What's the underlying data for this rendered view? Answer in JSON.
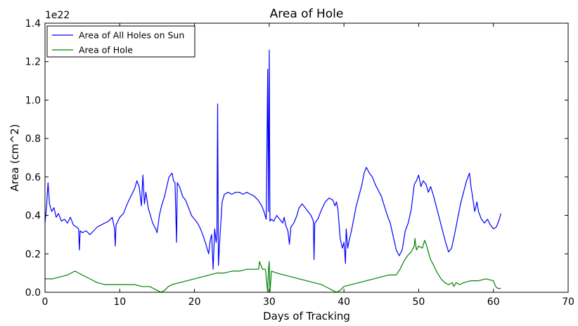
{
  "chart_data": {
    "type": "line",
    "title": "Area of Hole",
    "xlabel": "Days of Tracking",
    "ylabel": "Area (cm^2)",
    "y_offset_label": "1e22",
    "xlim": [
      0,
      70
    ],
    "ylim": [
      0,
      1.4
    ],
    "x_ticks": [
      "0",
      "10",
      "20",
      "30",
      "40",
      "50",
      "60",
      "70"
    ],
    "y_ticks": [
      "0.0",
      "0.2",
      "0.4",
      "0.6",
      "0.8",
      "1.0",
      "1.2",
      "1.4"
    ],
    "grid": false,
    "legend_position": "top-left",
    "series": [
      {
        "name": "Area of All Holes on Sun",
        "color": "#0000ff",
        "points": [
          [
            0,
            0.36
          ],
          [
            0.2,
            0.44
          ],
          [
            0.4,
            0.57
          ],
          [
            0.6,
            0.46
          ],
          [
            0.9,
            0.42
          ],
          [
            1.2,
            0.44
          ],
          [
            1.5,
            0.39
          ],
          [
            1.8,
            0.41
          ],
          [
            2.2,
            0.37
          ],
          [
            2.6,
            0.38
          ],
          [
            3.0,
            0.36
          ],
          [
            3.4,
            0.39
          ],
          [
            3.8,
            0.35
          ],
          [
            4.2,
            0.34
          ],
          [
            4.5,
            0.33
          ],
          [
            4.6,
            0.22
          ],
          [
            4.7,
            0.32
          ],
          [
            5.0,
            0.31
          ],
          [
            5.5,
            0.32
          ],
          [
            6.0,
            0.3
          ],
          [
            6.5,
            0.32
          ],
          [
            7.0,
            0.34
          ],
          [
            7.5,
            0.35
          ],
          [
            8.0,
            0.36
          ],
          [
            8.5,
            0.37
          ],
          [
            9.0,
            0.39
          ],
          [
            9.3,
            0.33
          ],
          [
            9.4,
            0.24
          ],
          [
            9.5,
            0.35
          ],
          [
            10.0,
            0.39
          ],
          [
            10.5,
            0.41
          ],
          [
            11.0,
            0.46
          ],
          [
            11.5,
            0.5
          ],
          [
            12.0,
            0.54
          ],
          [
            12.3,
            0.58
          ],
          [
            12.6,
            0.55
          ],
          [
            12.9,
            0.45
          ],
          [
            13.1,
            0.61
          ],
          [
            13.3,
            0.46
          ],
          [
            13.5,
            0.52
          ],
          [
            13.8,
            0.44
          ],
          [
            14.1,
            0.4
          ],
          [
            14.4,
            0.36
          ],
          [
            14.8,
            0.33
          ],
          [
            15.0,
            0.31
          ],
          [
            15.3,
            0.4
          ],
          [
            15.6,
            0.45
          ],
          [
            16.0,
            0.5
          ],
          [
            16.3,
            0.55
          ],
          [
            16.6,
            0.6
          ],
          [
            17.0,
            0.62
          ],
          [
            17.2,
            0.58
          ],
          [
            17.4,
            0.57
          ],
          [
            17.6,
            0.26
          ],
          [
            17.7,
            0.57
          ],
          [
            18.0,
            0.55
          ],
          [
            18.4,
            0.5
          ],
          [
            18.8,
            0.48
          ],
          [
            19.2,
            0.44
          ],
          [
            19.6,
            0.4
          ],
          [
            20.0,
            0.38
          ],
          [
            20.4,
            0.36
          ],
          [
            20.8,
            0.33
          ],
          [
            21.2,
            0.29
          ],
          [
            21.6,
            0.24
          ],
          [
            21.9,
            0.2
          ],
          [
            22.1,
            0.27
          ],
          [
            22.3,
            0.3
          ],
          [
            22.5,
            0.12
          ],
          [
            22.7,
            0.33
          ],
          [
            22.9,
            0.26
          ],
          [
            23.0,
            0.3
          ],
          [
            23.1,
            0.98
          ],
          [
            23.2,
            0.14
          ],
          [
            23.4,
            0.28
          ],
          [
            23.7,
            0.47
          ],
          [
            24.0,
            0.51
          ],
          [
            24.5,
            0.52
          ],
          [
            25.0,
            0.51
          ],
          [
            25.5,
            0.52
          ],
          [
            26.0,
            0.52
          ],
          [
            26.5,
            0.51
          ],
          [
            27.0,
            0.52
          ],
          [
            27.5,
            0.51
          ],
          [
            28.0,
            0.5
          ],
          [
            28.5,
            0.48
          ],
          [
            29.0,
            0.45
          ],
          [
            29.3,
            0.42
          ],
          [
            29.6,
            0.38
          ],
          [
            29.8,
            1.16
          ],
          [
            29.9,
            0.42
          ],
          [
            30.0,
            1.26
          ],
          [
            30.1,
            0.37
          ],
          [
            30.3,
            0.38
          ],
          [
            30.6,
            0.37
          ],
          [
            31.0,
            0.4
          ],
          [
            31.4,
            0.38
          ],
          [
            31.8,
            0.36
          ],
          [
            32.0,
            0.39
          ],
          [
            32.2,
            0.35
          ],
          [
            32.5,
            0.32
          ],
          [
            32.7,
            0.25
          ],
          [
            32.9,
            0.34
          ],
          [
            33.3,
            0.36
          ],
          [
            33.7,
            0.4
          ],
          [
            34.0,
            0.44
          ],
          [
            34.4,
            0.46
          ],
          [
            34.8,
            0.44
          ],
          [
            35.2,
            0.42
          ],
          [
            35.6,
            0.4
          ],
          [
            35.9,
            0.37
          ],
          [
            36.0,
            0.17
          ],
          [
            36.1,
            0.36
          ],
          [
            36.5,
            0.38
          ],
          [
            37.0,
            0.43
          ],
          [
            37.5,
            0.47
          ],
          [
            38.0,
            0.49
          ],
          [
            38.5,
            0.48
          ],
          [
            38.8,
            0.45
          ],
          [
            39.0,
            0.47
          ],
          [
            39.2,
            0.43
          ],
          [
            39.5,
            0.28
          ],
          [
            39.8,
            0.23
          ],
          [
            40.0,
            0.26
          ],
          [
            40.1,
            0.21
          ],
          [
            40.2,
            0.15
          ],
          [
            40.3,
            0.33
          ],
          [
            40.5,
            0.23
          ],
          [
            40.7,
            0.27
          ],
          [
            41.0,
            0.32
          ],
          [
            41.3,
            0.38
          ],
          [
            41.6,
            0.44
          ],
          [
            42.0,
            0.5
          ],
          [
            42.4,
            0.56
          ],
          [
            42.7,
            0.62
          ],
          [
            43.0,
            0.65
          ],
          [
            43.4,
            0.62
          ],
          [
            43.8,
            0.6
          ],
          [
            44.2,
            0.56
          ],
          [
            44.6,
            0.53
          ],
          [
            45.0,
            0.5
          ],
          [
            45.4,
            0.45
          ],
          [
            45.8,
            0.4
          ],
          [
            46.2,
            0.36
          ],
          [
            46.6,
            0.29
          ],
          [
            47.0,
            0.22
          ],
          [
            47.4,
            0.19
          ],
          [
            47.8,
            0.22
          ],
          [
            48.2,
            0.32
          ],
          [
            48.6,
            0.36
          ],
          [
            49.0,
            0.43
          ],
          [
            49.4,
            0.56
          ],
          [
            49.7,
            0.58
          ],
          [
            50.0,
            0.61
          ],
          [
            50.3,
            0.55
          ],
          [
            50.6,
            0.58
          ],
          [
            51.0,
            0.56
          ],
          [
            51.3,
            0.52
          ],
          [
            51.6,
            0.55
          ],
          [
            52.0,
            0.5
          ],
          [
            52.4,
            0.44
          ],
          [
            52.8,
            0.38
          ],
          [
            53.2,
            0.32
          ],
          [
            53.6,
            0.26
          ],
          [
            54.0,
            0.21
          ],
          [
            54.4,
            0.23
          ],
          [
            54.8,
            0.3
          ],
          [
            55.2,
            0.38
          ],
          [
            55.6,
            0.46
          ],
          [
            56.0,
            0.52
          ],
          [
            56.4,
            0.58
          ],
          [
            56.8,
            0.62
          ],
          [
            57.0,
            0.55
          ],
          [
            57.2,
            0.5
          ],
          [
            57.5,
            0.42
          ],
          [
            57.8,
            0.47
          ],
          [
            58.0,
            0.42
          ],
          [
            58.4,
            0.38
          ],
          [
            58.8,
            0.36
          ],
          [
            59.2,
            0.38
          ],
          [
            59.6,
            0.35
          ],
          [
            60.0,
            0.33
          ],
          [
            60.4,
            0.34
          ],
          [
            60.8,
            0.38
          ],
          [
            61.0,
            0.41
          ]
        ]
      },
      {
        "name": "Area of Hole",
        "color": "#008000",
        "points": [
          [
            0,
            0.07
          ],
          [
            1.0,
            0.07
          ],
          [
            2.0,
            0.08
          ],
          [
            3.0,
            0.09
          ],
          [
            3.5,
            0.1
          ],
          [
            4.0,
            0.11
          ],
          [
            4.5,
            0.1
          ],
          [
            5.0,
            0.09
          ],
          [
            5.5,
            0.08
          ],
          [
            6.0,
            0.07
          ],
          [
            7.0,
            0.05
          ],
          [
            8.0,
            0.04
          ],
          [
            9.0,
            0.04
          ],
          [
            10.0,
            0.04
          ],
          [
            11.0,
            0.04
          ],
          [
            12.0,
            0.04
          ],
          [
            13.0,
            0.03
          ],
          [
            14.0,
            0.03
          ],
          [
            14.5,
            0.02
          ],
          [
            15.0,
            0.01
          ],
          [
            15.5,
            0.0
          ],
          [
            16.0,
            0.01
          ],
          [
            16.5,
            0.03
          ],
          [
            17.0,
            0.04
          ],
          [
            18.0,
            0.05
          ],
          [
            19.0,
            0.06
          ],
          [
            20.0,
            0.07
          ],
          [
            21.0,
            0.08
          ],
          [
            22.0,
            0.09
          ],
          [
            23.0,
            0.1
          ],
          [
            24.0,
            0.1
          ],
          [
            25.0,
            0.11
          ],
          [
            26.0,
            0.11
          ],
          [
            27.0,
            0.12
          ],
          [
            28.0,
            0.12
          ],
          [
            28.6,
            0.12
          ],
          [
            28.7,
            0.16
          ],
          [
            28.9,
            0.14
          ],
          [
            29.1,
            0.12
          ],
          [
            29.5,
            0.12
          ],
          [
            29.8,
            0.0
          ],
          [
            29.9,
            0.12
          ],
          [
            30.0,
            0.16
          ],
          [
            30.1,
            0.0
          ],
          [
            30.3,
            0.11
          ],
          [
            31.0,
            0.1
          ],
          [
            32.0,
            0.09
          ],
          [
            33.0,
            0.08
          ],
          [
            34.0,
            0.07
          ],
          [
            35.0,
            0.06
          ],
          [
            36.0,
            0.05
          ],
          [
            37.0,
            0.04
          ],
          [
            38.0,
            0.02
          ],
          [
            38.5,
            0.01
          ],
          [
            39.0,
            0.0
          ],
          [
            39.5,
            0.01
          ],
          [
            40.0,
            0.03
          ],
          [
            41.0,
            0.04
          ],
          [
            42.0,
            0.05
          ],
          [
            43.0,
            0.06
          ],
          [
            44.0,
            0.07
          ],
          [
            45.0,
            0.08
          ],
          [
            46.0,
            0.09
          ],
          [
            47.0,
            0.09
          ],
          [
            47.5,
            0.12
          ],
          [
            48.0,
            0.16
          ],
          [
            48.5,
            0.19
          ],
          [
            49.0,
            0.21
          ],
          [
            49.4,
            0.24
          ],
          [
            49.5,
            0.28
          ],
          [
            49.7,
            0.22
          ],
          [
            50.0,
            0.24
          ],
          [
            50.5,
            0.23
          ],
          [
            50.8,
            0.27
          ],
          [
            51.0,
            0.25
          ],
          [
            51.3,
            0.21
          ],
          [
            51.6,
            0.17
          ],
          [
            52.0,
            0.14
          ],
          [
            52.5,
            0.1
          ],
          [
            53.0,
            0.07
          ],
          [
            53.5,
            0.05
          ],
          [
            54.0,
            0.04
          ],
          [
            54.5,
            0.05
          ],
          [
            54.7,
            0.03
          ],
          [
            55.0,
            0.05
          ],
          [
            55.5,
            0.04
          ],
          [
            56.0,
            0.05
          ],
          [
            57.0,
            0.06
          ],
          [
            58.0,
            0.06
          ],
          [
            59.0,
            0.07
          ],
          [
            60.0,
            0.06
          ],
          [
            60.3,
            0.03
          ],
          [
            60.6,
            0.02
          ],
          [
            61.0,
            0.02
          ]
        ]
      }
    ]
  }
}
